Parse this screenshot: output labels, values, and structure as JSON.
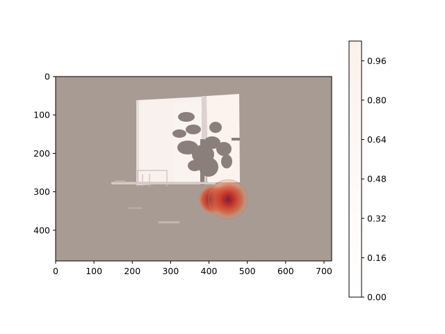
{
  "chart_data": {
    "type": "heatmap",
    "title": "",
    "xlabel": "",
    "ylabel": "",
    "image_extent": {
      "x": [
        0,
        720
      ],
      "y": [
        0,
        480
      ]
    },
    "xlim": [
      0,
      720
    ],
    "ylim": [
      480,
      0
    ],
    "y_axis_inverted": true,
    "x_ticks": [
      0,
      100,
      200,
      300,
      400,
      500,
      600,
      700
    ],
    "x_tick_labels": [
      "0",
      "100",
      "200",
      "300",
      "400",
      "500",
      "600",
      "700"
    ],
    "y_ticks": [
      0,
      100,
      200,
      300,
      400
    ],
    "y_tick_labels": [
      "0",
      "100",
      "200",
      "300",
      "400"
    ],
    "grid": false,
    "background_image": "indoor photo of a bright window with a potted plant silhouette, table and chairs, overlaid with a semi-transparent heat map",
    "hotspots": [
      {
        "x": 410,
        "y": 320,
        "intensity": 0.9
      },
      {
        "x": 450,
        "y": 320,
        "intensity": 1.0
      }
    ],
    "colorbar": {
      "range": [
        0.0,
        1.04
      ],
      "ticks": [
        0.0,
        0.16,
        0.32,
        0.48,
        0.64,
        0.8,
        0.96
      ],
      "tick_labels": [
        "0.00",
        "0.16",
        "0.32",
        "0.48",
        "0.64",
        "0.80",
        "0.96"
      ],
      "colors": [
        "#ffffff",
        "#fdf6f2",
        "#fbe9e0"
      ]
    },
    "colors": {
      "overlay": "#a89b94",
      "window_light": "#fbf3ef",
      "plant": "#8a807b",
      "hotspot_core": "#7a2030",
      "hotspot_mid": "#c23a28",
      "hotspot_outer": "#e8906a"
    }
  }
}
